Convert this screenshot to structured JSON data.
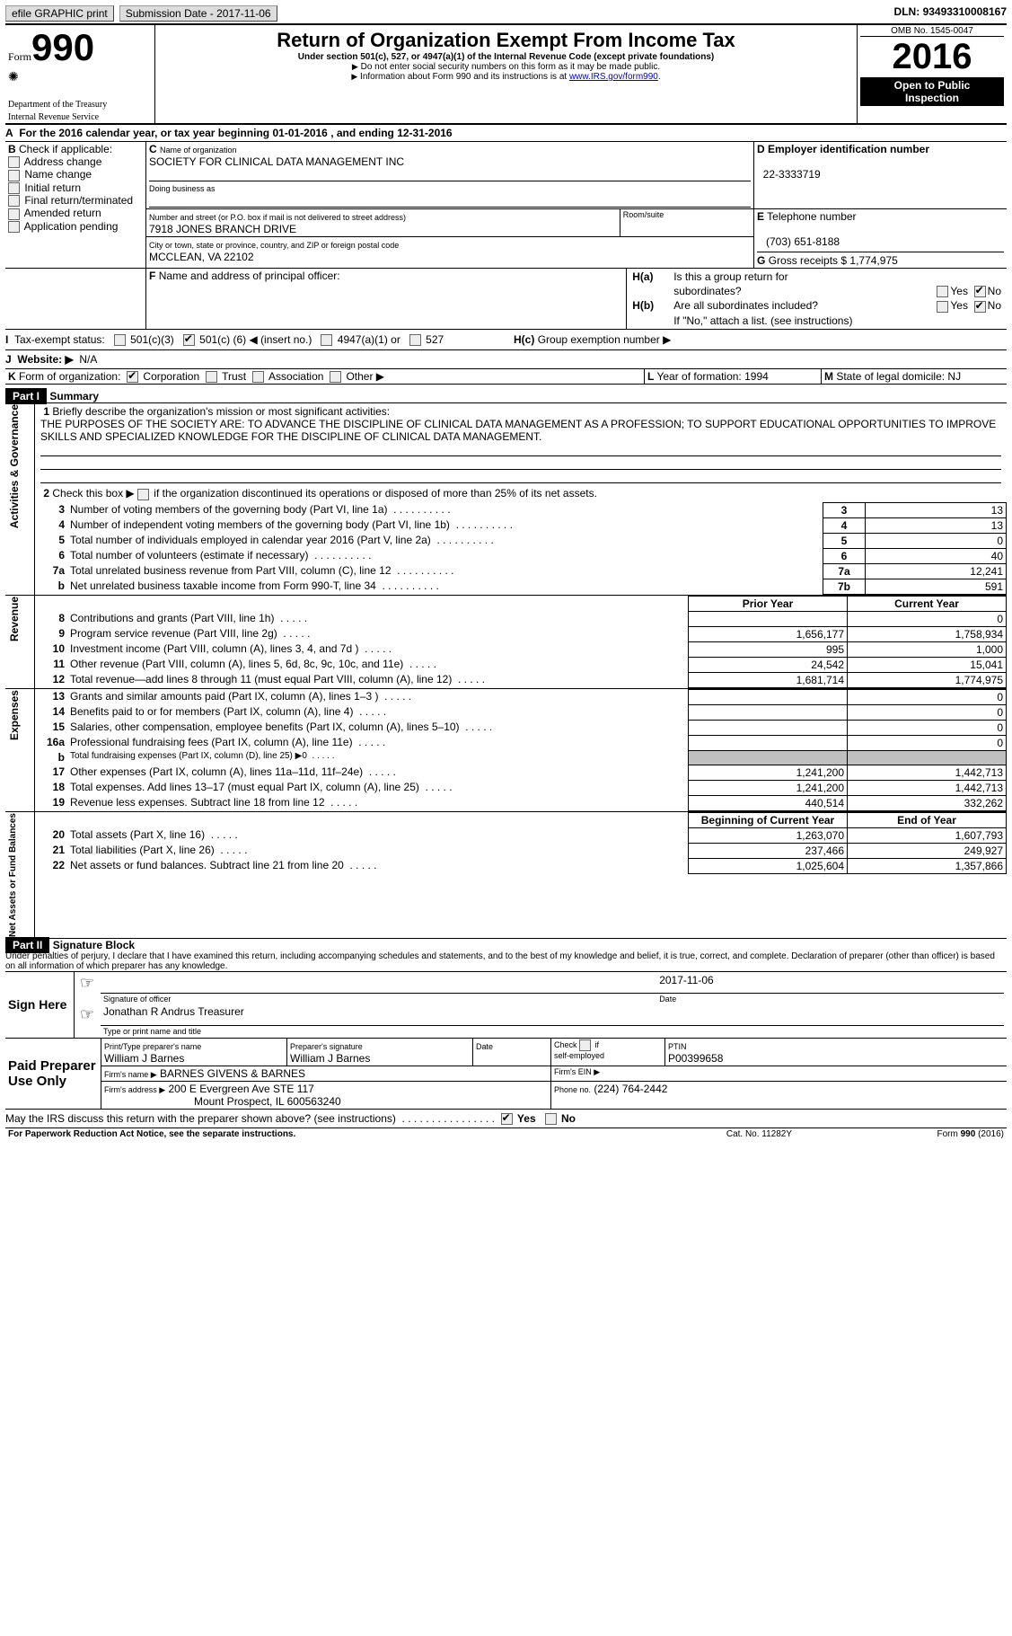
{
  "topbar": {
    "efile": "efile GRAPHIC print",
    "sub_label": "Submission Date",
    "sub_date": "2017-11-06",
    "dln_label": "DLN:",
    "dln": "93493310008167"
  },
  "header": {
    "form": "Form",
    "formno": "990",
    "dept1": "Department of the Treasury",
    "dept2": "Internal Revenue Service",
    "title": "Return of Organization Exempt From Income Tax",
    "subtitle": "Under section 501(c), 527, or 4947(a)(1) of the Internal Revenue Code (except private foundations)",
    "note1": "Do not enter social security numbers on this form as it may be made public.",
    "note2_pre": "Information about Form 990 and its instructions is at ",
    "note2_link": "www.IRS.gov/form990",
    "note2_post": ".",
    "omb": "OMB No. 1545-0047",
    "year": "2016",
    "open1": "Open to Public",
    "open2": "Inspection"
  },
  "A": {
    "text_pre": "For the 2016 calendar year, or tax year beginning ",
    "begin": "01-01-2016",
    "mid": " , and ending ",
    "end": "12-31-2016"
  },
  "B": {
    "title": "Check if applicable:",
    "items": [
      "Address change",
      "Name change",
      "Initial return",
      "Final return/terminated",
      "Amended return",
      "Application pending"
    ]
  },
  "C": {
    "name_lbl": "Name of organization",
    "name": "SOCIETY FOR CLINICAL DATA MANAGEMENT INC",
    "dba_lbl": "Doing business as",
    "street_lbl": "Number and street (or P.O. box if mail is not delivered to street address)",
    "room_lbl": "Room/suite",
    "street": "7918 JONES BRANCH DRIVE",
    "city_lbl": "City or town, state or province, country, and ZIP or foreign postal code",
    "city": "MCCLEAN, VA  22102"
  },
  "D": {
    "lbl": "Employer identification number",
    "val": "22-3333719"
  },
  "E": {
    "lbl": "Telephone number",
    "val": "(703) 651-8188"
  },
  "G": {
    "lbl": "Gross receipts $",
    "val": "1,774,975"
  },
  "F": {
    "lbl": "Name and address of principal officer:"
  },
  "H": {
    "a": "Is this a group return for",
    "a2": "subordinates?",
    "b": "Are all subordinates included?",
    "bnote": "If \"No,\" attach a list. (see instructions)",
    "c": "Group exemption number ▶",
    "yes": "Yes",
    "no": "No"
  },
  "I": {
    "lbl": "Tax-exempt status:",
    "c3": "501(c)(3)",
    "c": "501(c) (",
    "cn": "6",
    "cend": ") ◀ (insert no.)",
    "a1": "4947(a)(1) or",
    "527": "527"
  },
  "J": {
    "lbl": "Website: ▶",
    "val": "N/A"
  },
  "K": {
    "lbl": "Form of organization:",
    "corp": "Corporation",
    "trust": "Trust",
    "assoc": "Association",
    "other": "Other ▶"
  },
  "L": {
    "lbl": "Year of formation:",
    "val": "1994"
  },
  "M": {
    "lbl": "State of legal domicile:",
    "val": "NJ"
  },
  "part1": {
    "hdr": "Part I",
    "title": "Summary"
  },
  "sections": {
    "ag": "Activities & Governance",
    "rev": "Revenue",
    "exp": "Expenses",
    "na": "Net Assets or Fund Balances"
  },
  "s1": {
    "l1_lbl": "Briefly describe the organization's mission or most significant activities:",
    "l1_txt": "THE PURPOSES OF THE SOCIETY ARE: TO ADVANCE THE DISCIPLINE OF CLINICAL DATA MANAGEMENT AS A PROFESSION; TO SUPPORT EDUCATIONAL OPPORTUNITIES TO IMPROVE SKILLS AND SPECIALIZED KNOWLEDGE FOR THE DISCIPLINE OF CLINICAL DATA MANAGEMENT.",
    "l2": "Check this box ▶        if the organization discontinued its operations or disposed of more than 25% of its net assets.",
    "rows": [
      {
        "n": "3",
        "t": "Number of voting members of the governing body (Part VI, line 1a)",
        "box": "3",
        "v": "13"
      },
      {
        "n": "4",
        "t": "Number of independent voting members of the governing body (Part VI, line 1b)",
        "box": "4",
        "v": "13"
      },
      {
        "n": "5",
        "t": "Total number of individuals employed in calendar year 2016 (Part V, line 2a)",
        "box": "5",
        "v": "0"
      },
      {
        "n": "6",
        "t": "Total number of volunteers (estimate if necessary)",
        "box": "6",
        "v": "40"
      },
      {
        "n": "7a",
        "t": "Total unrelated business revenue from Part VIII, column (C), line 12",
        "box": "7a",
        "v": "12,241"
      },
      {
        "n": "b",
        "t": "Net unrelated business taxable income from Form 990-T, line 34",
        "box": "7b",
        "v": "591"
      }
    ],
    "col_prior": "Prior Year",
    "col_curr": "Current Year",
    "rev": [
      {
        "n": "8",
        "t": "Contributions and grants (Part VIII, line 1h)",
        "p": "",
        "c": "0"
      },
      {
        "n": "9",
        "t": "Program service revenue (Part VIII, line 2g)",
        "p": "1,656,177",
        "c": "1,758,934"
      },
      {
        "n": "10",
        "t": "Investment income (Part VIII, column (A), lines 3, 4, and 7d )",
        "p": "995",
        "c": "1,000"
      },
      {
        "n": "11",
        "t": "Other revenue (Part VIII, column (A), lines 5, 6d, 8c, 9c, 10c, and 11e)",
        "p": "24,542",
        "c": "15,041"
      },
      {
        "n": "12",
        "t": "Total revenue—add lines 8 through 11 (must equal Part VIII, column (A), line 12)",
        "p": "1,681,714",
        "c": "1,774,975"
      }
    ],
    "exp": [
      {
        "n": "13",
        "t": "Grants and similar amounts paid (Part IX, column (A), lines 1–3 )",
        "p": "",
        "c": "0"
      },
      {
        "n": "14",
        "t": "Benefits paid to or for members (Part IX, column (A), line 4)",
        "p": "",
        "c": "0"
      },
      {
        "n": "15",
        "t": "Salaries, other compensation, employee benefits (Part IX, column (A), lines 5–10)",
        "p": "",
        "c": "0"
      },
      {
        "n": "16a",
        "t": "Professional fundraising fees (Part IX, column (A), line 11e)",
        "p": "",
        "c": "0"
      },
      {
        "n": "b",
        "t": "Total fundraising expenses (Part IX, column (D), line 25) ▶0",
        "p": "GRAY",
        "c": "GRAY"
      },
      {
        "n": "17",
        "t": "Other expenses (Part IX, column (A), lines 11a–11d, 11f–24e)",
        "p": "1,241,200",
        "c": "1,442,713"
      },
      {
        "n": "18",
        "t": "Total expenses. Add lines 13–17 (must equal Part IX, column (A), line 25)",
        "p": "1,241,200",
        "c": "1,442,713"
      },
      {
        "n": "19",
        "t": "Revenue less expenses. Subtract line 18 from line 12",
        "p": "440,514",
        "c": "332,262"
      }
    ],
    "col_boy": "Beginning of Current Year",
    "col_eoy": "End of Year",
    "na": [
      {
        "n": "20",
        "t": "Total assets (Part X, line 16)",
        "p": "1,263,070",
        "c": "1,607,793"
      },
      {
        "n": "21",
        "t": "Total liabilities (Part X, line 26)",
        "p": "237,466",
        "c": "249,927"
      },
      {
        "n": "22",
        "t": "Net assets or fund balances. Subtract line 21 from line 20",
        "p": "1,025,604",
        "c": "1,357,866"
      }
    ]
  },
  "part2": {
    "hdr": "Part II",
    "title": "Signature Block",
    "decl": "Under penalties of perjury, I declare that I have examined this return, including accompanying schedules and statements, and to the best of my knowledge and belief, it is true, correct, and complete. Declaration of preparer (other than officer) is based on all information of which preparer has any knowledge."
  },
  "sign": {
    "here": "Sign Here",
    "sig_lbl": "Signature of officer",
    "date_lbl": "Date",
    "date": "2017-11-06",
    "name": "Jonathan R Andrus Treasurer",
    "name_lbl": "Type or print name and title"
  },
  "paid": {
    "hdr": "Paid Preparer Use Only",
    "pn_lbl": "Print/Type preparer's name",
    "pn": "William J Barnes",
    "ps_lbl": "Preparer's signature",
    "ps": "William J Barnes",
    "dt_lbl": "Date",
    "chk_lbl": "Check        if self-employed",
    "ptin_lbl": "PTIN",
    "ptin": "P00399658",
    "fn_lbl": "Firm's name   ▶",
    "fn": "BARNES GIVENS & BARNES",
    "fein_lbl": "Firm's EIN ▶",
    "fa_lbl": "Firm's address ▶",
    "fa1": "200 E Evergreen Ave STE 117",
    "fa2": "Mount Prospect, IL  600563240",
    "ph_lbl": "Phone no.",
    "ph": "(224) 764-2442"
  },
  "footer": {
    "q": "May the IRS discuss this return with the preparer shown above? (see instructions)",
    "yes": "Yes",
    "no": "No",
    "pra": "For Paperwork Reduction Act Notice, see the separate instructions.",
    "cat": "Cat. No. 11282Y",
    "form": "Form 990 (2016)"
  }
}
